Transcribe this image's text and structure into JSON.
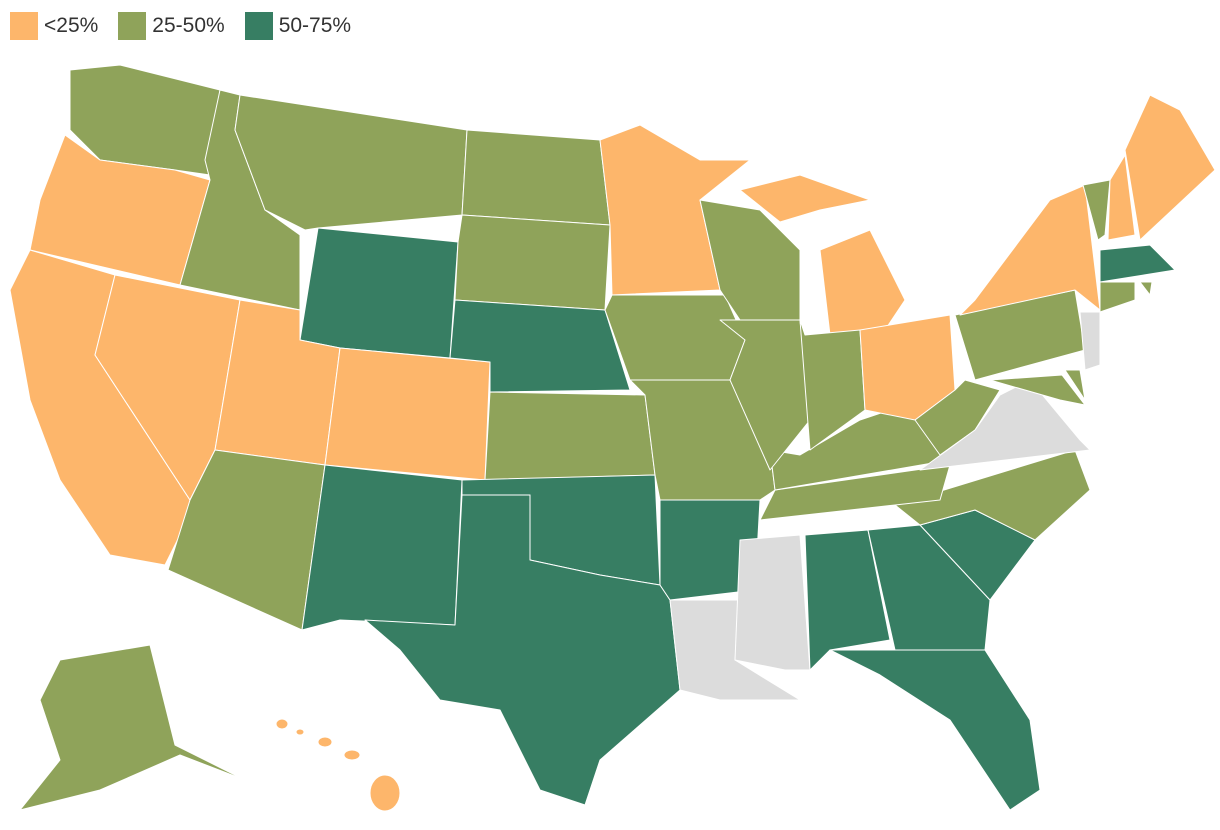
{
  "legend": [
    {
      "label": "<25%",
      "color": "#fdb66b"
    },
    {
      "label": "25-50%",
      "color": "#8fa35a"
    },
    {
      "label": "50-75%",
      "color": "#377e63"
    }
  ]
}
